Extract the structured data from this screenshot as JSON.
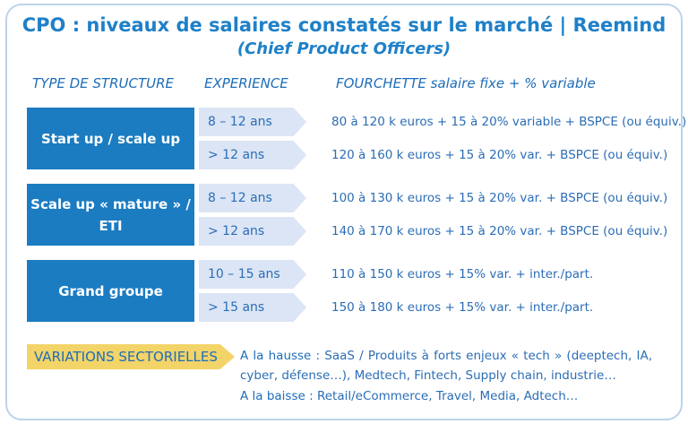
{
  "header": {
    "title": "CPO : niveaux de salaires constatés sur le marché | Reemind",
    "subtitle": "(Chief Product Officers)"
  },
  "columns": [
    "TYPE DE STRUCTURE",
    "EXPERIENCE",
    "FOURCHETTE salaire fixe + % variable"
  ],
  "groups": [
    {
      "label": "Start up / scale up",
      "rows": [
        {
          "experience": "8 – 12 ans",
          "range": "80 à 120 k euros + 15 à 20% variable + BSPCE (ou équiv.)"
        },
        {
          "experience": "> 12 ans",
          "range": "120 à 160 k euros + 15 à 20% var. + BSPCE (ou équiv.)"
        }
      ]
    },
    {
      "label": "Scale up « mature » / ETI",
      "rows": [
        {
          "experience": "8 – 12 ans",
          "range": "100 à 130 k euros + 15 à 20% var. + BSPCE (ou équiv.)"
        },
        {
          "experience": "> 12 ans",
          "range": "140 à 170 k euros + 15 à 20% var. + BSPCE (ou équiv.)"
        }
      ]
    },
    {
      "label": "Grand groupe",
      "rows": [
        {
          "experience": "10 – 15 ans",
          "range": "110 à 150 k euros + 15% var. + inter./part."
        },
        {
          "experience": "> 15 ans",
          "range": "150 à 180 k euros + 15% var. + inter./part."
        }
      ]
    }
  ],
  "variations": {
    "label": "VARIATIONS SECTORIELLES",
    "up": {
      "label": "A la hausse",
      "text": " : SaaS / Produits à forts enjeux « tech » (deeptech, IA, cyber, défense…), Medtech, Fintech, Supply chain, industrie…"
    },
    "down": {
      "label": "A la baisse",
      "text": " : Retail/eCommerce, Travel, Media, Adtech…"
    }
  }
}
